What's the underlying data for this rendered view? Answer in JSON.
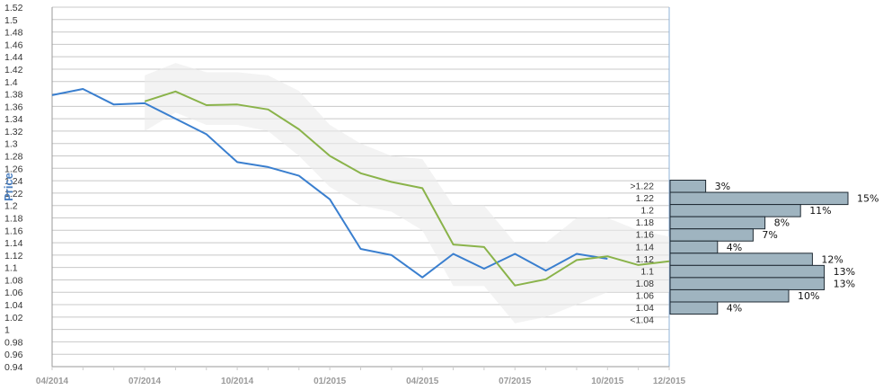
{
  "chart_data": {
    "type": "line",
    "ylabel": "Price",
    "ylim": [
      0.94,
      1.52
    ],
    "y_ticks": [
      "1.52",
      "1.5",
      "1.48",
      "1.46",
      "1.44",
      "1.42",
      "1.4",
      "1.38",
      "1.36",
      "1.34",
      "1.32",
      "1.3",
      "1.28",
      "1.26",
      "1.24",
      "1.22",
      "1.2",
      "1.18",
      "1.16",
      "1.14",
      "1.12",
      "1.1",
      "1.08",
      "1.06",
      "1.04",
      "1.02",
      "1",
      "0.98",
      "0.96",
      "0.94"
    ],
    "x_ticks": [
      "04/2014",
      "07/2014",
      "10/2014",
      "01/2015",
      "04/2015",
      "07/2015",
      "10/2015",
      "12/2015"
    ],
    "grid": true,
    "series": [
      {
        "color": "#3a7fcf",
        "x": [
          "2014-04",
          "2014-05",
          "2014-06",
          "2014-07",
          "2014-08",
          "2014-09",
          "2014-10",
          "2014-11",
          "2014-12",
          "2015-01",
          "2015-02",
          "2015-03",
          "2015-04",
          "2015-05",
          "2015-06",
          "2015-07",
          "2015-08",
          "2015-09",
          "2015-10"
        ],
        "values": [
          1.378,
          1.388,
          1.363,
          1.365,
          1.34,
          1.315,
          1.27,
          1.262,
          1.248,
          1.21,
          1.13,
          1.12,
          1.084,
          1.122,
          1.098,
          1.122,
          1.095,
          1.122,
          1.114
        ]
      },
      {
        "color": "#8ab34a",
        "x": [
          "2014-07",
          "2014-08",
          "2014-09",
          "2014-10",
          "2014-11",
          "2014-12",
          "2015-01",
          "2015-02",
          "2015-03",
          "2015-04",
          "2015-05",
          "2015-06",
          "2015-07",
          "2015-08",
          "2015-09",
          "2015-10",
          "2015-11",
          "2015-12"
        ],
        "values": [
          1.368,
          1.384,
          1.362,
          1.363,
          1.355,
          1.323,
          1.28,
          1.252,
          1.238,
          1.228,
          1.137,
          1.133,
          1.071,
          1.081,
          1.112,
          1.118,
          1.104,
          1.11
        ]
      }
    ],
    "band": {
      "color": "#ebebeb",
      "x": [
        "2014-07",
        "2014-08",
        "2014-09",
        "2014-10",
        "2014-11",
        "2014-12",
        "2015-01",
        "2015-02",
        "2015-03",
        "2015-04",
        "2015-05",
        "2015-06",
        "2015-07",
        "2015-08",
        "2015-09",
        "2015-10",
        "2015-11",
        "2015-12"
      ],
      "upper": [
        1.41,
        1.43,
        1.415,
        1.415,
        1.41,
        1.385,
        1.33,
        1.3,
        1.28,
        1.275,
        1.2,
        1.2,
        1.14,
        1.14,
        1.18,
        1.18,
        1.16,
        1.15
      ],
      "lower": [
        1.32,
        1.35,
        1.33,
        1.33,
        1.32,
        1.28,
        1.23,
        1.2,
        1.19,
        1.16,
        1.07,
        1.07,
        1.01,
        1.02,
        1.04,
        1.06,
        1.06,
        1.06
      ]
    },
    "distribution": {
      "color": "#9fb4c0",
      "labels": [
        ">1.22",
        "1.22",
        "1.2",
        "1.18",
        "1.16",
        "1.14",
        "1.12",
        "1.1",
        "1.08",
        "1.06",
        "1.04",
        "<1.04"
      ],
      "percents": [
        3,
        15,
        11,
        8,
        7,
        4,
        12,
        13,
        13,
        10,
        4,
        null
      ],
      "percent_labels": [
        "3%",
        "15%",
        "11%",
        "8%",
        "7%",
        "4%",
        "12%",
        "13%",
        "13%",
        "10%",
        "4%",
        ""
      ]
    }
  }
}
